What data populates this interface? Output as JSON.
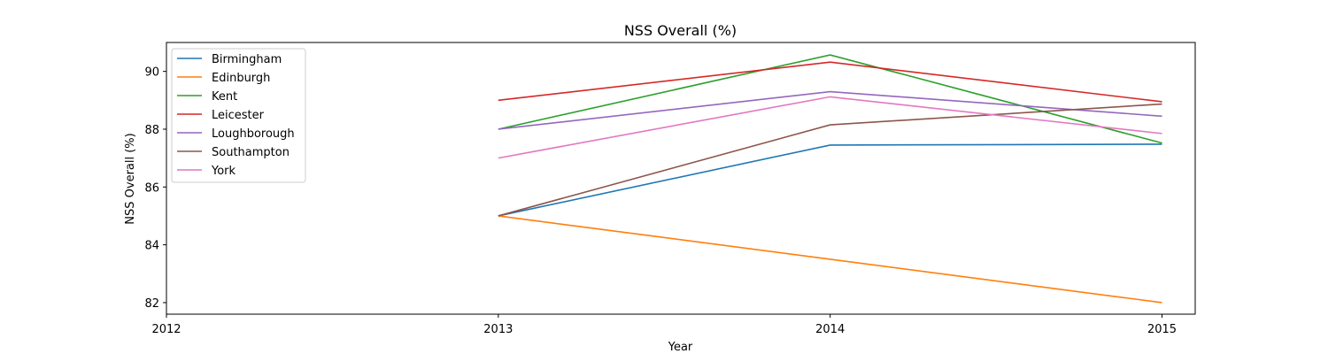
{
  "chart_data": {
    "type": "line",
    "title": "NSS Overall (%)",
    "xlabel": "Year",
    "ylabel": "NSS Overall (%)",
    "xlim": [
      2012,
      2015.1
    ],
    "ylim": [
      81.6,
      91.0
    ],
    "xticks": [
      2012,
      2013,
      2014,
      2015
    ],
    "yticks": [
      82,
      84,
      86,
      88,
      90
    ],
    "x": [
      2013,
      2014,
      2015
    ],
    "grid": false,
    "legend_position": "top-left",
    "series": [
      {
        "name": "Birmingham",
        "color": "#1f77b4",
        "values": [
          85.0,
          87.45,
          87.48
        ]
      },
      {
        "name": "Edinburgh",
        "color": "#ff7f0e",
        "values": [
          85.0,
          83.5,
          82.0
        ]
      },
      {
        "name": "Kent",
        "color": "#2ca02c",
        "values": [
          88.0,
          90.57,
          87.52
        ]
      },
      {
        "name": "Leicester",
        "color": "#d62728",
        "values": [
          89.0,
          90.32,
          88.95
        ]
      },
      {
        "name": "Loughborough",
        "color": "#9467bd",
        "values": [
          88.0,
          89.3,
          88.45
        ]
      },
      {
        "name": "Southampton",
        "color": "#8c564b",
        "values": [
          85.0,
          88.15,
          88.87
        ]
      },
      {
        "name": "York",
        "color": "#e377c2",
        "values": [
          87.0,
          89.12,
          87.85
        ]
      }
    ]
  }
}
